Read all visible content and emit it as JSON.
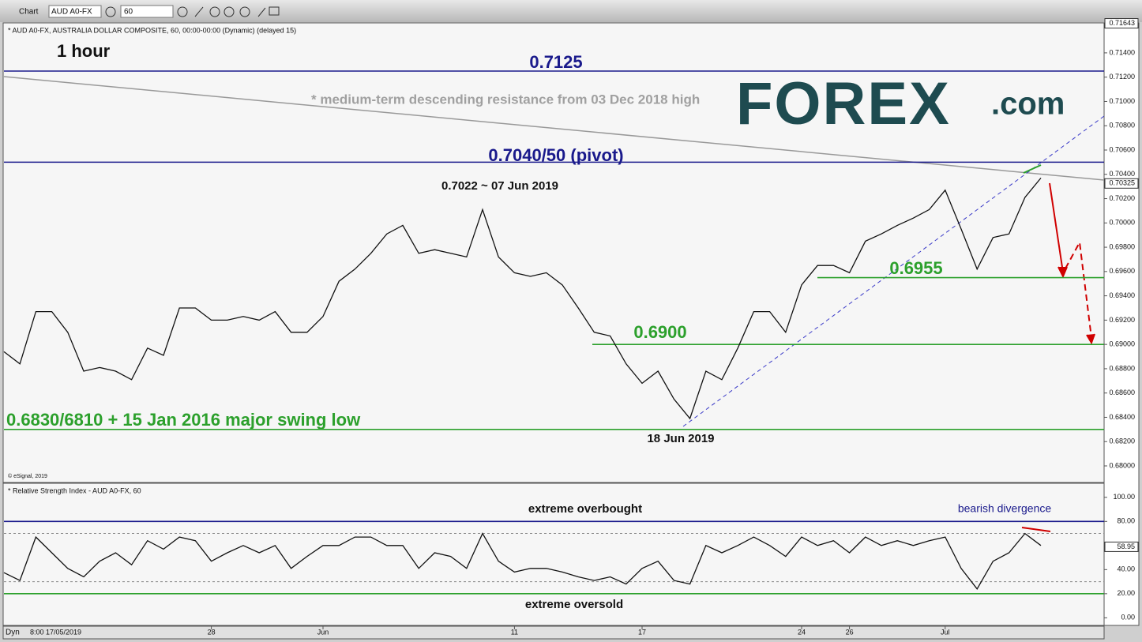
{
  "toolbar": {
    "title": "Chart",
    "symbol": "AUD A0-FX",
    "interval": "60"
  },
  "footer": {
    "mode": "Dyn",
    "start": "8:00 17/05/2019"
  },
  "logo": {
    "main": "FOREX",
    "suffix": ".com"
  },
  "chart_data": [
    {
      "type": "line",
      "title": "* AUD A0-FX, AUSTRALIA DOLLAR COMPOSITE, 60, 00:00-00:00 (Dynamic) (delayed 15)",
      "color": "#111111",
      "categories": [
        null,
        null,
        null,
        null,
        null,
        null,
        null,
        null,
        null,
        null,
        null,
        null,
        null,
        "28",
        null,
        null,
        null,
        null,
        null,
        null,
        "Jun",
        null,
        null,
        null,
        null,
        null,
        null,
        null,
        null,
        null,
        null,
        null,
        "11",
        null,
        null,
        null,
        null,
        null,
        null,
        null,
        "17",
        null,
        null,
        null,
        null,
        null,
        null,
        null,
        null,
        null,
        "24",
        null,
        null,
        "26",
        null,
        null,
        null,
        null,
        null,
        "Jul",
        null,
        null,
        null,
        null,
        null,
        null
      ],
      "values": [
        0.6894,
        0.6884,
        0.6927,
        0.6927,
        0.691,
        0.6878,
        0.6881,
        0.6878,
        0.6871,
        0.6897,
        0.6891,
        0.693,
        0.693,
        0.692,
        0.692,
        0.6923,
        0.692,
        0.6927,
        0.691,
        0.691,
        0.6923,
        0.6952,
        0.6962,
        0.6975,
        0.6991,
        0.6998,
        0.6975,
        0.6978,
        0.6975,
        0.6972,
        0.7011,
        0.6972,
        0.6959,
        0.6956,
        0.6959,
        0.6949,
        0.693,
        0.691,
        0.6907,
        0.6884,
        0.6868,
        0.6878,
        0.6855,
        0.6839,
        0.6878,
        0.6871,
        0.6897,
        0.6927,
        0.6927,
        0.691,
        0.6949,
        0.6965,
        0.6965,
        0.6959,
        0.6985,
        0.6991,
        0.6998,
        0.7004,
        0.7011,
        0.7027,
        0.6995,
        0.6962,
        0.6988,
        0.6991,
        0.7021,
        0.7037
      ],
      "ylim": [
        0.6787,
        0.7164
      ],
      "yticks": [
        {
          "value": 0.68,
          "label": "0.68000"
        },
        {
          "value": 0.682,
          "label": "0.68200"
        },
        {
          "value": 0.684,
          "label": "0.68400"
        },
        {
          "value": 0.686,
          "label": "0.68600"
        },
        {
          "value": 0.688,
          "label": "0.68800"
        },
        {
          "value": 0.69,
          "label": "0.69000"
        },
        {
          "value": 0.692,
          "label": "0.69200"
        },
        {
          "value": 0.694,
          "label": "0.69400"
        },
        {
          "value": 0.696,
          "label": "0.69600"
        },
        {
          "value": 0.698,
          "label": "0.69800"
        },
        {
          "value": 0.7,
          "label": "0.70000"
        },
        {
          "value": 0.702,
          "label": "0.70200"
        },
        {
          "value": 0.704,
          "label": "0.70400"
        },
        {
          "value": 0.706,
          "label": "0.70600"
        },
        {
          "value": 0.708,
          "label": "0.70800"
        },
        {
          "value": 0.71,
          "label": "0.71000"
        },
        {
          "value": 0.712,
          "label": "0.71200"
        },
        {
          "value": 0.714,
          "label": "0.71400"
        }
      ],
      "marker_labels": [
        {
          "value": 0.71643,
          "label": "0.71643"
        },
        {
          "value": 0.70325,
          "label": "0.70325"
        }
      ],
      "levels": [
        {
          "value": 0.7125,
          "label": "0.7125",
          "color": "#1a1a8c"
        },
        {
          "value": 0.705,
          "label": "0.7040/50 (pivot)",
          "color": "#1a1a8c"
        },
        {
          "value": 0.6955,
          "label": "0.6955",
          "color": "#2ca02c"
        },
        {
          "value": 0.69,
          "label": "0.6900",
          "color": "#2ca02c"
        },
        {
          "value": 0.683,
          "label": "0.6830/6810 + 15 Jan 2016 major swing low",
          "color": "#2ca02c"
        }
      ],
      "annotations": [
        "1 hour",
        "* medium-term descending resistance from 03 Dec 2018 high",
        "0.7022 ~ 07 Jun 2019",
        "18 Jun 2019",
        "© eSignal, 2019"
      ]
    },
    {
      "type": "line",
      "title": "* Relative Strength Index - AUD A0-FX, 60",
      "color": "#111111",
      "values": [
        37.5,
        31,
        67,
        54,
        41,
        34,
        47,
        54,
        44,
        64,
        57,
        67,
        64,
        47,
        54,
        60,
        54,
        60,
        41,
        51,
        60,
        60,
        67,
        67,
        60,
        60,
        41,
        54,
        51,
        41,
        70,
        47,
        38,
        41,
        41,
        38,
        34,
        31,
        34,
        28,
        41,
        47,
        31,
        28,
        60,
        54,
        60,
        67,
        60,
        51,
        67,
        60,
        64,
        54,
        67,
        60,
        64,
        60,
        64,
        67,
        41,
        24,
        47,
        54,
        70,
        60
      ],
      "ylim": [
        -5,
        111
      ],
      "yticks": [
        {
          "value": 0,
          "label": "0.00"
        },
        {
          "value": 20,
          "label": "20.00"
        },
        {
          "value": 40,
          "label": "40.00"
        },
        {
          "value": 80,
          "label": "80.00"
        },
        {
          "value": 100,
          "label": "100.00"
        }
      ],
      "marker_labels": [
        {
          "value": 58.95,
          "label": "58.95"
        }
      ],
      "levels": [
        {
          "value": 80,
          "color": "#1a1a8c",
          "dashed": false
        },
        {
          "value": 70,
          "color": "#888888",
          "dashed": true
        },
        {
          "value": 30,
          "color": "#888888",
          "dashed": true
        },
        {
          "value": 20,
          "color": "#2ca02c",
          "dashed": false
        }
      ],
      "annotations": [
        "extreme overbought",
        "extreme oversold",
        "bearish divergence"
      ]
    }
  ]
}
